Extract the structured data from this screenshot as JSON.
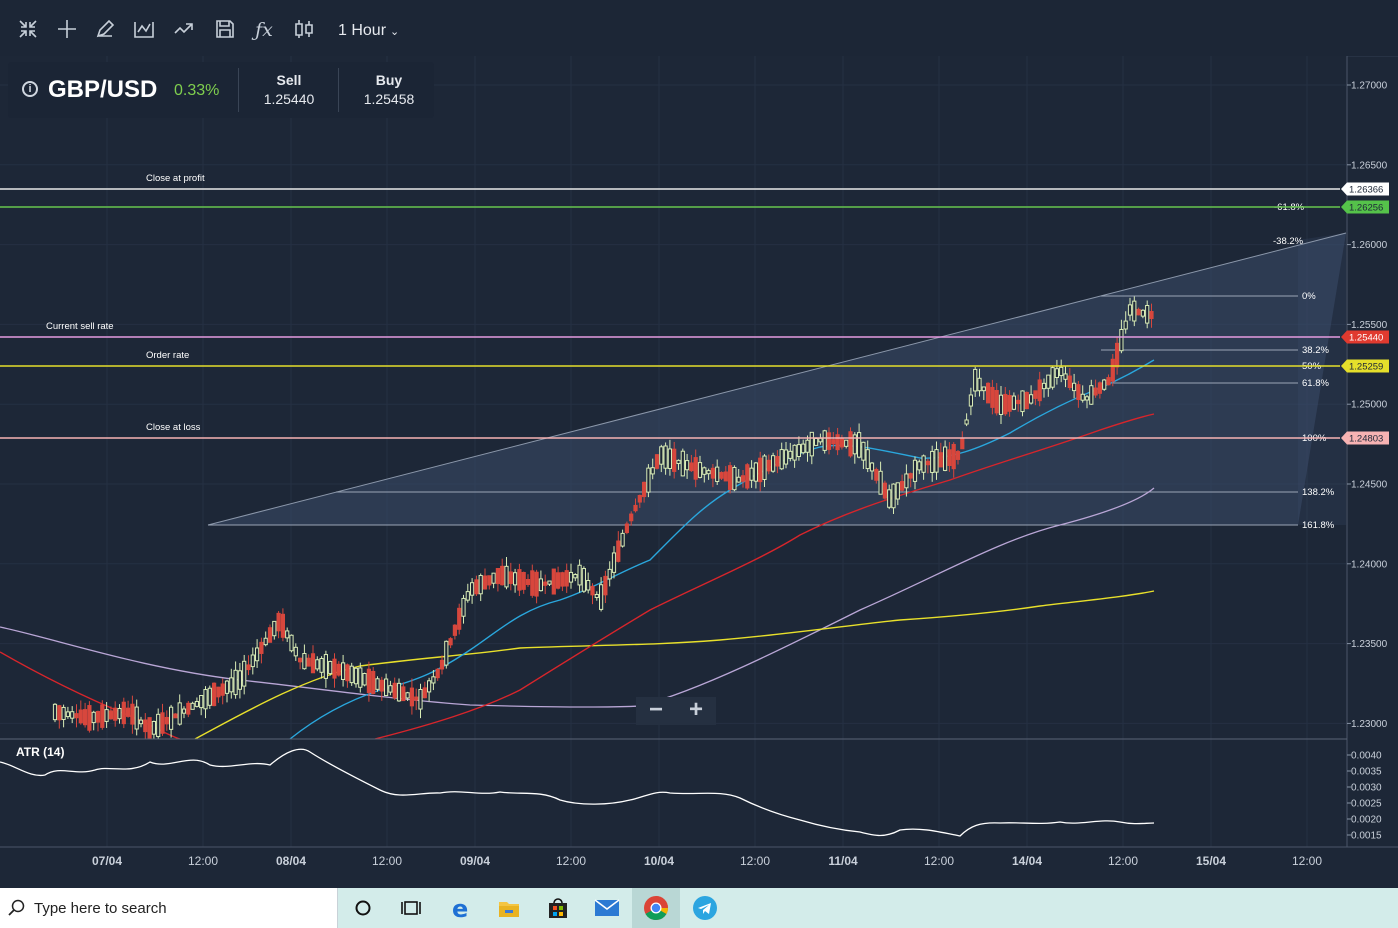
{
  "toolbar": {
    "icons": [
      "collapse-icon",
      "crosshair-icon",
      "pencil-icon",
      "chart-type-icon",
      "trend-line-icon",
      "save-icon",
      "function-icon",
      "candles-icon"
    ],
    "interval_label": "1 Hour",
    "interval_caret": "⌄"
  },
  "instrument": {
    "symbol": "GBP/USD",
    "change": "0.33%",
    "sell_label": "Sell",
    "sell_value": "1.25440",
    "buy_label": "Buy",
    "buy_value": "1.25458"
  },
  "price_axis": {
    "ticks": [
      "1.27000",
      "1.26500",
      "1.26000",
      "1.25500",
      "1.25000",
      "1.24500",
      "1.24000",
      "1.23500",
      "1.23000"
    ],
    "badges": [
      {
        "value": "1.26366",
        "color": "#ffffff",
        "text_color": "#1d2737"
      },
      {
        "value": "1.26256",
        "color": "#55c24a",
        "text_color": "#1d2737"
      },
      {
        "value": "1.25440",
        "color": "#e03a2f",
        "text_color": "#ffffff"
      },
      {
        "value": "1.25259",
        "color": "#e5df2b",
        "text_color": "#1d2737"
      },
      {
        "value": "1.24803",
        "color": "#f7b3b3",
        "text_color": "#1d2737"
      }
    ]
  },
  "lines": {
    "close_at_profit": "Close at profit",
    "current_sell_rate": "Current sell rate",
    "order_rate": "Order rate",
    "close_at_loss": "Close at loss"
  },
  "fib_levels": [
    "-61.8%",
    "-38.2%",
    "0%",
    "38.2%",
    "50%",
    "61.8%",
    "100%",
    "138.2%",
    "161.8%"
  ],
  "time_axis": [
    "07/04",
    "12:00",
    "08/04",
    "12:00",
    "09/04",
    "12:00",
    "10/04",
    "12:00",
    "11/04",
    "12:00",
    "14/04",
    "12:00",
    "15/04",
    "12:00"
  ],
  "indicator": {
    "name": "ATR (14)",
    "ticks": [
      "0.0040",
      "0.0035",
      "0.0030",
      "0.0025",
      "0.0020",
      "0.0015"
    ]
  },
  "zoom": {
    "minus": "−",
    "plus": "+"
  },
  "taskbar": {
    "search_placeholder": "Type here to search",
    "apps": [
      "cortana-icon",
      "task-view-icon",
      "edge-icon",
      "file-explorer-icon",
      "store-icon",
      "mail-icon",
      "chrome-icon",
      "telegram-icon"
    ]
  },
  "chart_data": {
    "type": "candlestick",
    "symbol": "GBP/USD",
    "interval": "1 Hour",
    "ylim": [
      1.2285,
      1.272
    ],
    "lines": [
      {
        "label": "Close at profit",
        "value": 1.26366,
        "color": "#ffffff"
      },
      {
        "label": "-61.8%",
        "value": 1.26256,
        "color": "#55c24a"
      },
      {
        "label": "Current sell rate",
        "value": 1.2544,
        "color": "#e59be0"
      },
      {
        "label": "Order rate",
        "value": 1.25259,
        "color": "#e5df2b"
      },
      {
        "label": "Close at loss",
        "value": 1.24803,
        "color": "#f7b3b3"
      }
    ],
    "indicator": {
      "name": "ATR (14)",
      "ylim": [
        0.0012,
        0.0043
      ]
    }
  }
}
